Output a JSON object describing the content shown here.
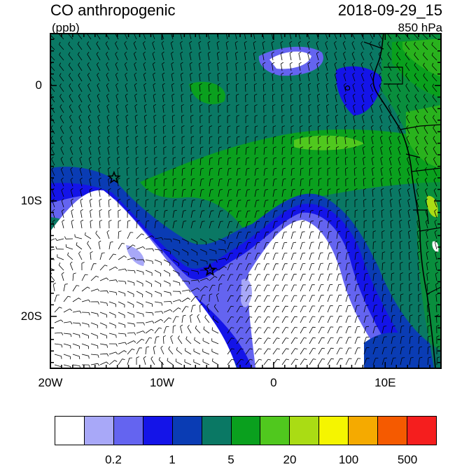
{
  "title": "CO anthropogenic",
  "units": "(ppb)",
  "datetime": "2018-09-29_15",
  "level": "850 hPa",
  "map": {
    "lon_range": [
      -20,
      15
    ],
    "lat_range": [
      -24.5,
      4.5
    ],
    "x_ticks": [
      {
        "lon": -20,
        "label": "20W"
      },
      {
        "lon": -10,
        "label": "10W"
      },
      {
        "lon": 0,
        "label": "0"
      },
      {
        "lon": 10,
        "label": "10E"
      }
    ],
    "y_ticks": [
      {
        "lat": 0,
        "label": "0"
      },
      {
        "lat": -10,
        "label": "10S"
      },
      {
        "lat": -20,
        "label": "20S"
      }
    ],
    "star_markers": [
      {
        "lon": -14.3,
        "lat": -8.0
      },
      {
        "lon": -5.7,
        "lat": -16.0
      }
    ]
  },
  "colorbar": {
    "colors": [
      "#ffffff",
      "#a8a8f8",
      "#6464f0",
      "#1414e8",
      "#0a3cb4",
      "#0a7864",
      "#0aa01e",
      "#50c81e",
      "#aadc14",
      "#f5f500",
      "#f5aa00",
      "#f55a00",
      "#f51e1e"
    ],
    "labels": [
      {
        "text": "0.2",
        "boundary": 2
      },
      {
        "text": "1",
        "boundary": 4
      },
      {
        "text": "5",
        "boundary": 6
      },
      {
        "text": "20",
        "boundary": 8
      },
      {
        "text": "100",
        "boundary": 10
      },
      {
        "text": "500",
        "boundary": 12
      }
    ]
  }
}
